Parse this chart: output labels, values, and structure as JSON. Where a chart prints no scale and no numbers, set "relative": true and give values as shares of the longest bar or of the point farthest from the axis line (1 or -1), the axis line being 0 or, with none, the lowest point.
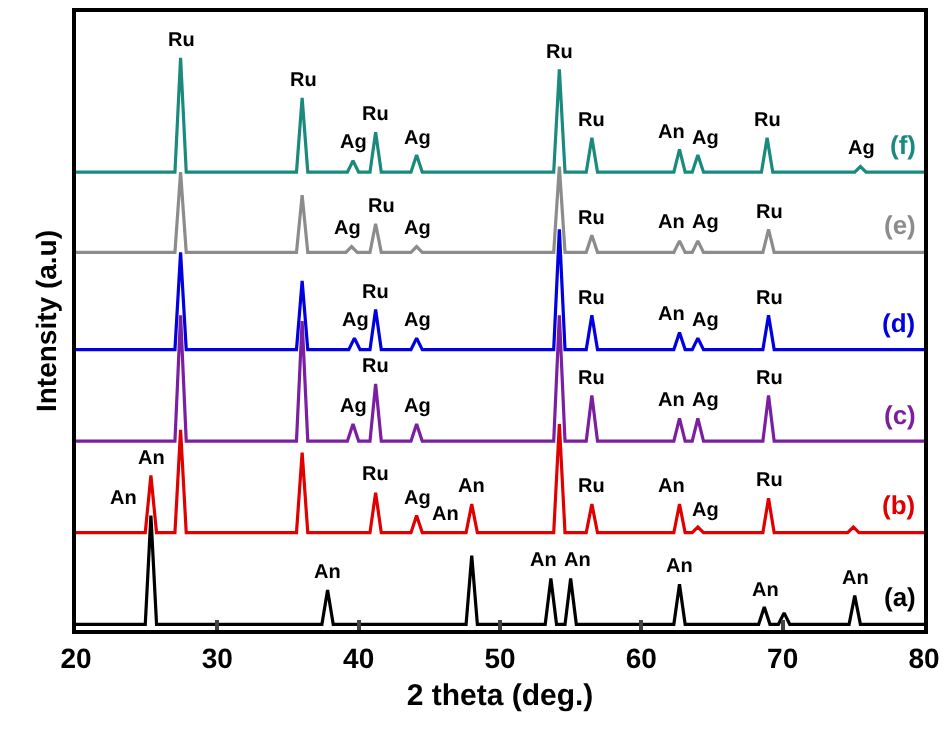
{
  "chart_data": {
    "type": "line",
    "relative": true,
    "xlabel": "2 theta (deg.)",
    "ylabel": "Intensity (a.u)",
    "xlim": [
      20,
      80
    ],
    "xticks": [
      20,
      30,
      40,
      50,
      60,
      70,
      80
    ],
    "grid": false,
    "legend": false,
    "series": [
      {
        "name": "(a)",
        "color": "#000000",
        "x": [
          20,
          24.9,
          25.3,
          25.7,
          37.4,
          37.8,
          38.2,
          47.6,
          48,
          48.4,
          53.2,
          53.6,
          54,
          54.6,
          55,
          55.4,
          62.3,
          62.7,
          63.1,
          68.3,
          68.7,
          69.1,
          69.7,
          70.1,
          70.5,
          74.7,
          75.1,
          75.5,
          80
        ],
        "values": [
          0.01,
          0.01,
          0.2,
          0.01,
          0.01,
          0.07,
          0.01,
          0.01,
          0.13,
          0.01,
          0.01,
          0.09,
          0.01,
          0.01,
          0.09,
          0.01,
          0.01,
          0.08,
          0.01,
          0.01,
          0.04,
          0.01,
          0.01,
          0.03,
          0.01,
          0.01,
          0.06,
          0.01,
          0.01
        ]
      },
      {
        "name": "(b)",
        "color": "#e00000",
        "x": [
          20,
          24.9,
          25.3,
          25.7,
          27.0,
          27.4,
          27.8,
          35.6,
          36,
          36.4,
          40.8,
          41.2,
          41.6,
          43.7,
          44.1,
          44.5,
          47.6,
          48,
          48.4,
          53.8,
          54.2,
          54.6,
          56.1,
          56.5,
          56.9,
          62.3,
          62.7,
          63.1,
          63.6,
          64,
          64.4,
          68.6,
          69,
          69.4,
          74.6,
          75,
          75.4,
          80
        ],
        "values": [
          0.17,
          0.17,
          0.27,
          0.17,
          0.17,
          0.35,
          0.17,
          0.17,
          0.31,
          0.17,
          0.17,
          0.24,
          0.17,
          0.17,
          0.2,
          0.17,
          0.17,
          0.22,
          0.17,
          0.17,
          0.36,
          0.17,
          0.17,
          0.22,
          0.17,
          0.17,
          0.22,
          0.17,
          0.17,
          0.18,
          0.17,
          0.17,
          0.23,
          0.17,
          0.17,
          0.18,
          0.17,
          0.17
        ]
      },
      {
        "name": "(c)",
        "color": "#7b1fa2",
        "x": [
          20,
          27.0,
          27.4,
          27.8,
          35.6,
          36,
          36.4,
          39.2,
          39.6,
          40.0,
          40.8,
          41.2,
          41.6,
          43.7,
          44.1,
          44.5,
          53.8,
          54.2,
          54.6,
          56.1,
          56.5,
          56.9,
          62.3,
          62.7,
          63.1,
          63.6,
          64,
          64.4,
          68.6,
          69,
          69.4,
          80
        ],
        "values": [
          0.33,
          0.33,
          0.55,
          0.33,
          0.33,
          0.54,
          0.33,
          0.33,
          0.36,
          0.33,
          0.33,
          0.43,
          0.33,
          0.33,
          0.36,
          0.33,
          0.33,
          0.55,
          0.33,
          0.33,
          0.41,
          0.33,
          0.33,
          0.37,
          0.33,
          0.33,
          0.37,
          0.33,
          0.33,
          0.41,
          0.33,
          0.33
        ]
      },
      {
        "name": "(d)",
        "color": "#0000e0",
        "x": [
          20,
          27.0,
          27.4,
          27.8,
          35.6,
          36,
          36.4,
          39.3,
          39.7,
          40.1,
          40.8,
          41.2,
          41.6,
          43.7,
          44.1,
          44.5,
          53.8,
          54.2,
          54.6,
          56.1,
          56.5,
          56.9,
          62.3,
          62.7,
          63.1,
          63.6,
          64,
          64.4,
          68.6,
          69,
          69.4,
          80
        ],
        "values": [
          0.49,
          0.49,
          0.66,
          0.49,
          0.49,
          0.61,
          0.49,
          0.49,
          0.51,
          0.49,
          0.49,
          0.56,
          0.49,
          0.49,
          0.51,
          0.49,
          0.49,
          0.7,
          0.49,
          0.49,
          0.55,
          0.49,
          0.49,
          0.52,
          0.49,
          0.49,
          0.51,
          0.49,
          0.49,
          0.55,
          0.49,
          0.49
        ]
      },
      {
        "name": "(e)",
        "color": "#8c8c8c",
        "x": [
          20,
          27.0,
          27.4,
          27.8,
          35.6,
          36,
          36.4,
          39.1,
          39.5,
          39.9,
          40.8,
          41.2,
          41.6,
          43.7,
          44.1,
          44.5,
          53.8,
          54.2,
          54.6,
          56.1,
          56.5,
          56.9,
          62.3,
          62.7,
          63.1,
          63.6,
          64,
          64.4,
          68.6,
          69,
          69.4,
          80
        ],
        "values": [
          0.66,
          0.66,
          0.8,
          0.66,
          0.66,
          0.76,
          0.66,
          0.66,
          0.67,
          0.66,
          0.66,
          0.71,
          0.66,
          0.66,
          0.67,
          0.66,
          0.66,
          0.81,
          0.66,
          0.66,
          0.69,
          0.66,
          0.66,
          0.68,
          0.66,
          0.66,
          0.68,
          0.66,
          0.66,
          0.7,
          0.66,
          0.66
        ]
      },
      {
        "name": "(f)",
        "color": "#1a8a7f",
        "x": [
          20,
          27.0,
          27.4,
          27.8,
          35.6,
          36,
          36.4,
          39.2,
          39.6,
          40.0,
          40.8,
          41.2,
          41.6,
          43.7,
          44.1,
          44.5,
          53.8,
          54.2,
          54.6,
          56.1,
          56.5,
          56.9,
          62.3,
          62.7,
          63.1,
          63.6,
          64,
          64.4,
          68.5,
          68.9,
          69.3,
          75.1,
          75.5,
          75.9,
          80
        ],
        "values": [
          0.8,
          0.8,
          1.0,
          0.8,
          0.8,
          0.93,
          0.8,
          0.8,
          0.82,
          0.8,
          0.8,
          0.87,
          0.8,
          0.8,
          0.83,
          0.8,
          0.8,
          0.98,
          0.8,
          0.8,
          0.86,
          0.8,
          0.8,
          0.84,
          0.8,
          0.8,
          0.83,
          0.8,
          0.8,
          0.86,
          0.8,
          0.8,
          0.81,
          0.8,
          0.8
        ]
      }
    ],
    "annotations": [
      {
        "text": "Ru",
        "x": 27.4,
        "y": 1.0
      },
      {
        "text": "Ru",
        "x": 36,
        "y": 0.93
      },
      {
        "text": "Ag",
        "x": 39.6,
        "y": 0.82
      },
      {
        "text": "Ru",
        "x": 41.2,
        "y": 0.87
      },
      {
        "text": "Ag",
        "x": 44.1,
        "y": 0.83
      },
      {
        "text": "Ru",
        "x": 54.2,
        "y": 0.98
      },
      {
        "text": "Ru",
        "x": 56.5,
        "y": 0.86
      },
      {
        "text": "An",
        "x": 62.7,
        "y": 0.84
      },
      {
        "text": "Ag",
        "x": 64,
        "y": 0.83
      },
      {
        "text": "Ru",
        "x": 68.9,
        "y": 0.86
      },
      {
        "text": "Ag",
        "x": 75.5,
        "y": 0.81
      },
      {
        "text": "Ag",
        "x": 39.5,
        "y": 0.67
      },
      {
        "text": "Ru",
        "x": 41.2,
        "y": 0.71
      },
      {
        "text": "Ag",
        "x": 44.1,
        "y": 0.67
      },
      {
        "text": "Ru",
        "x": 56.5,
        "y": 0.69
      },
      {
        "text": "An",
        "x": 62.7,
        "y": 0.68
      },
      {
        "text": "Ag",
        "x": 64,
        "y": 0.68
      },
      {
        "text": "Ru",
        "x": 69,
        "y": 0.7
      },
      {
        "text": "Ag",
        "x": 39.7,
        "y": 0.51
      },
      {
        "text": "Ru",
        "x": 41.2,
        "y": 0.56
      },
      {
        "text": "Ag",
        "x": 44.1,
        "y": 0.51
      },
      {
        "text": "Ru",
        "x": 56.5,
        "y": 0.55
      },
      {
        "text": "An",
        "x": 62.7,
        "y": 0.52
      },
      {
        "text": "Ag",
        "x": 64,
        "y": 0.51
      },
      {
        "text": "Ru",
        "x": 69,
        "y": 0.55
      },
      {
        "text": "Ag",
        "x": 39.6,
        "y": 0.36
      },
      {
        "text": "Ru",
        "x": 41.2,
        "y": 0.43
      },
      {
        "text": "Ag",
        "x": 44.1,
        "y": 0.36
      },
      {
        "text": "Ru",
        "x": 56.5,
        "y": 0.41
      },
      {
        "text": "An",
        "x": 62.7,
        "y": 0.37
      },
      {
        "text": "Ag",
        "x": 64,
        "y": 0.37
      },
      {
        "text": "Ru",
        "x": 69,
        "y": 0.41
      },
      {
        "text": "An",
        "x": 25.3,
        "y": 0.27
      },
      {
        "text": "Ru",
        "x": 41.2,
        "y": 0.24
      },
      {
        "text": "Ag",
        "x": 44.1,
        "y": 0.2
      },
      {
        "text": "An",
        "x": 48,
        "y": 0.22
      },
      {
        "text": "Ru",
        "x": 56.5,
        "y": 0.22
      },
      {
        "text": "An",
        "x": 62.7,
        "y": 0.22
      },
      {
        "text": "Ag",
        "x": 64,
        "y": 0.18
      },
      {
        "text": "Ru",
        "x": 69,
        "y": 0.23
      },
      {
        "text": "An",
        "x": 25.3,
        "y": 0.2
      },
      {
        "text": "An",
        "x": 37.8,
        "y": 0.07
      },
      {
        "text": "An",
        "x": 48,
        "y": 0.13
      },
      {
        "text": "An",
        "x": 53.6,
        "y": 0.09
      },
      {
        "text": "An",
        "x": 55,
        "y": 0.09
      },
      {
        "text": "An",
        "x": 62.7,
        "y": 0.08
      },
      {
        "text": "An",
        "x": 68.7,
        "y": 0.04
      },
      {
        "text": "An",
        "x": 75.1,
        "y": 0.06
      }
    ]
  }
}
